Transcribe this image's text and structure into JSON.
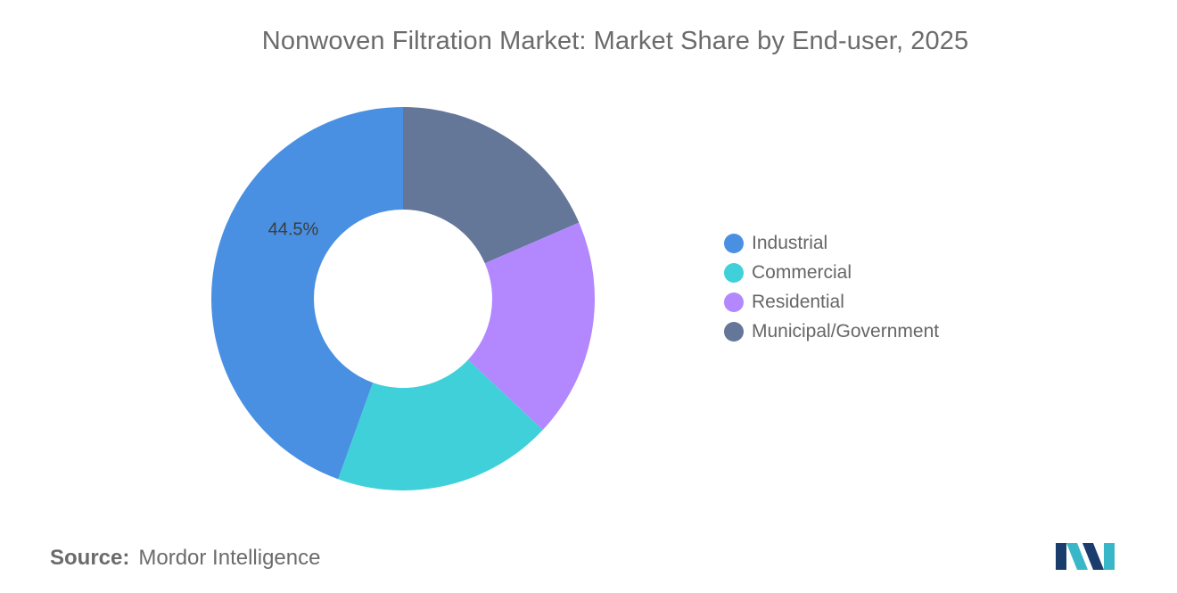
{
  "chart_data": {
    "type": "pie",
    "variant": "donut",
    "title": "Nonwoven Filtration Market: Market Share by End-user, 2025",
    "categories": [
      "Industrial",
      "Commercial",
      "Residential",
      "Municipal/Government"
    ],
    "values": [
      44.5,
      18.5,
      18.5,
      18.5
    ],
    "data_labels": [
      "44.5%",
      "",
      "",
      ""
    ],
    "colors": [
      "#4a90e2",
      "#3fd0d9",
      "#b388ff",
      "#647799"
    ],
    "legend_position": "right"
  },
  "source": {
    "label": "Source:",
    "value": "Mordor Intelligence"
  },
  "logo": {
    "icon": "mordor-intelligence-logo",
    "colors": [
      "#1a3d6e",
      "#39b7c9"
    ]
  }
}
